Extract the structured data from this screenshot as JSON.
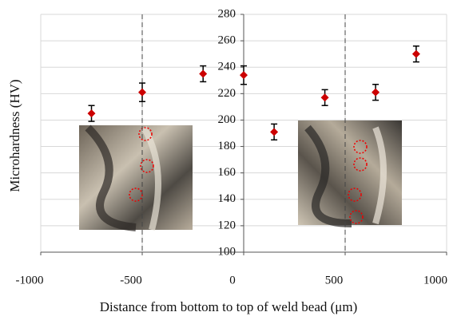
{
  "chart_data": {
    "type": "scatter",
    "x_label": "Distance from bottom to top of weld bead (μm)",
    "y_label": "Microhardness (HV)",
    "series": [
      {
        "color": "#cc0000",
        "x": [
          -750,
          -500,
          -200,
          0,
          150,
          400,
          650,
          850
        ],
        "values": [
          205,
          221,
          235,
          234,
          191,
          217,
          221,
          250
        ],
        "errors": [
          6,
          7,
          6,
          7,
          6,
          6,
          6,
          6
        ]
      }
    ],
    "xlim": [
      -1000,
      1000
    ],
    "xticks": [
      -1000,
      -500,
      0,
      500,
      1000
    ],
    "ylim": [
      100,
      280
    ],
    "yticks": [
      100,
      120,
      140,
      160,
      180,
      200,
      220,
      240,
      260,
      280
    ],
    "grid": true,
    "dashed_x": [
      -500,
      500
    ]
  }
}
